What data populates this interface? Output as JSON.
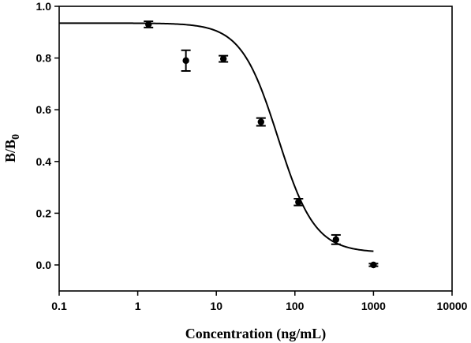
{
  "chart_data": {
    "type": "scatter",
    "title": "",
    "xlabel": "Concentration (ng/mL)",
    "ylabel": {
      "main": "B/B",
      "subscript": "0"
    },
    "xscale": "log",
    "xlim": [
      0.1,
      10000
    ],
    "ylim": [
      0.0,
      1.0
    ],
    "xticks": [
      {
        "value": 0.1,
        "label": "0.1"
      },
      {
        "value": 1,
        "label": "1"
      },
      {
        "value": 10,
        "label": "10"
      },
      {
        "value": 100,
        "label": "100"
      },
      {
        "value": 1000,
        "label": "1000"
      },
      {
        "value": 10000,
        "label": "10000"
      }
    ],
    "yticks": [
      {
        "value": 0.0,
        "label": "0.0"
      },
      {
        "value": 0.2,
        "label": "0.2"
      },
      {
        "value": 0.4,
        "label": "0.4"
      },
      {
        "value": 0.6,
        "label": "0.6"
      },
      {
        "value": 0.8,
        "label": "0.8"
      },
      {
        "value": 1.0,
        "label": "1.0"
      }
    ],
    "grid": false,
    "legend": "none",
    "series": [
      {
        "kind": "points-with-error-bars",
        "points": [
          {
            "x": 1.37,
            "y": 0.93,
            "err": 0.012
          },
          {
            "x": 4.1,
            "y": 0.79,
            "err": 0.04
          },
          {
            "x": 12.3,
            "y": 0.797,
            "err": 0.012
          },
          {
            "x": 37,
            "y": 0.553,
            "err": 0.015
          },
          {
            "x": 111,
            "y": 0.243,
            "err": 0.013
          },
          {
            "x": 333,
            "y": 0.098,
            "err": 0.018
          },
          {
            "x": 1000,
            "y": 0.0,
            "err": 0.005
          }
        ]
      },
      {
        "kind": "fitted-curve",
        "model": "four-parameter-logistic",
        "top": 0.935,
        "bottom": 0.048,
        "ic50": 61,
        "slope": 1.85,
        "x_range": [
          0.1,
          1000
        ]
      }
    ],
    "colors": {
      "ink": "#000000",
      "background": "#ffffff"
    }
  }
}
